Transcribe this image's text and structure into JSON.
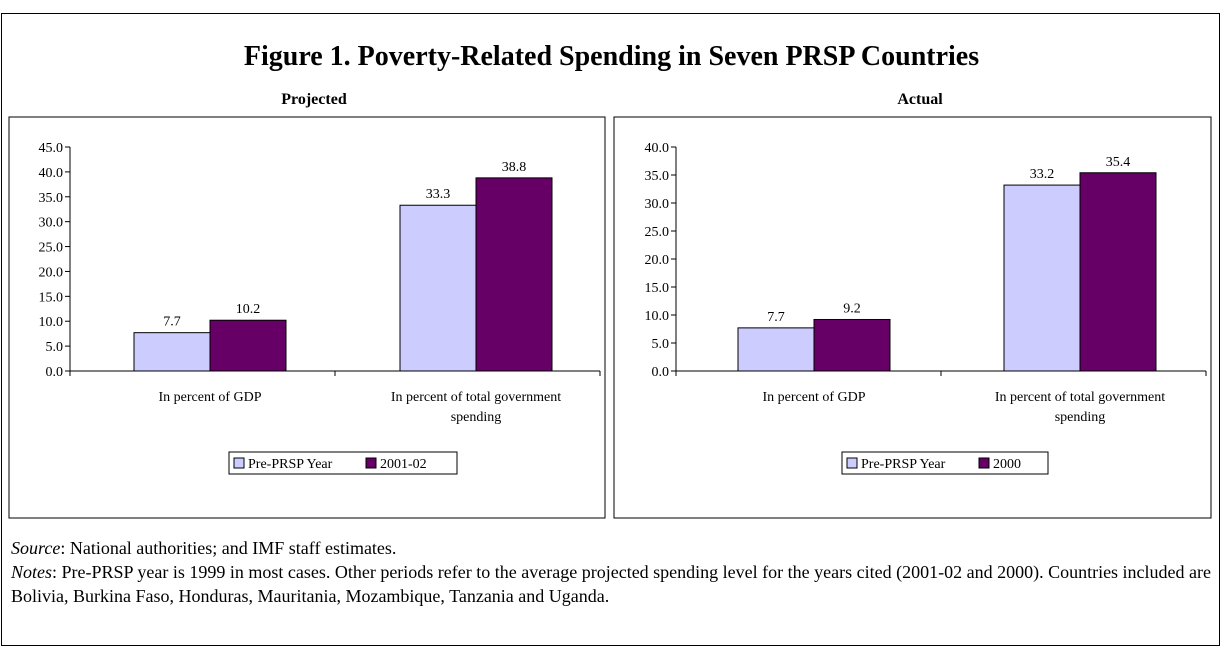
{
  "figure": {
    "title": "Figure 1. Poverty-Related Spending in Seven PRSP Countries"
  },
  "chart_data": [
    {
      "type": "bar",
      "title": "Projected",
      "categories": [
        "In percent of GDP",
        "In percent of total government spending"
      ],
      "category_lines": [
        [
          "In percent of GDP"
        ],
        [
          "In percent of total government",
          "spending"
        ]
      ],
      "series": [
        {
          "name": "Pre-PRSP Year",
          "values": [
            7.7,
            33.3
          ],
          "color": "#ccccff"
        },
        {
          "name": "2001-02",
          "values": [
            10.2,
            38.8
          ],
          "color": "#660066"
        }
      ],
      "ylim": [
        0,
        45
      ],
      "yticks": [
        "0.0",
        "5.0",
        "10.0",
        "15.0",
        "20.0",
        "25.0",
        "30.0",
        "35.0",
        "40.0",
        "45.0"
      ],
      "data_labels": [
        [
          "7.7",
          "33.3"
        ],
        [
          "10.2",
          "38.8"
        ]
      ],
      "grid": false,
      "legend_position": "bottom"
    },
    {
      "type": "bar",
      "title": "Actual",
      "categories": [
        "In percent of GDP",
        "In percent of total government spending"
      ],
      "category_lines": [
        [
          "In percent of GDP"
        ],
        [
          "In percent of total government",
          "spending"
        ]
      ],
      "series": [
        {
          "name": "Pre-PRSP Year",
          "values": [
            7.7,
            33.2
          ],
          "color": "#ccccff"
        },
        {
          "name": "2000",
          "values": [
            9.2,
            35.4
          ],
          "color": "#660066"
        }
      ],
      "ylim": [
        0,
        40
      ],
      "yticks": [
        "0.0",
        "5.0",
        "10.0",
        "15.0",
        "20.0",
        "25.0",
        "30.0",
        "35.0",
        "40.0"
      ],
      "data_labels": [
        [
          "7.7",
          "33.2"
        ],
        [
          "9.2",
          "35.4"
        ]
      ],
      "grid": false,
      "legend_position": "bottom"
    }
  ],
  "footnotes": {
    "source_label": "Source",
    "source_text": ": National authorities; and IMF staff estimates.",
    "notes_label": "Notes",
    "notes_text": ": Pre-PRSP year is 1999 in most cases. Other periods refer to the average projected spending level for the years cited (2001-02 and 2000). Countries included are Bolivia, Burkina Faso, Honduras, Mauritania, Mozambique, Tanzania and Uganda."
  }
}
